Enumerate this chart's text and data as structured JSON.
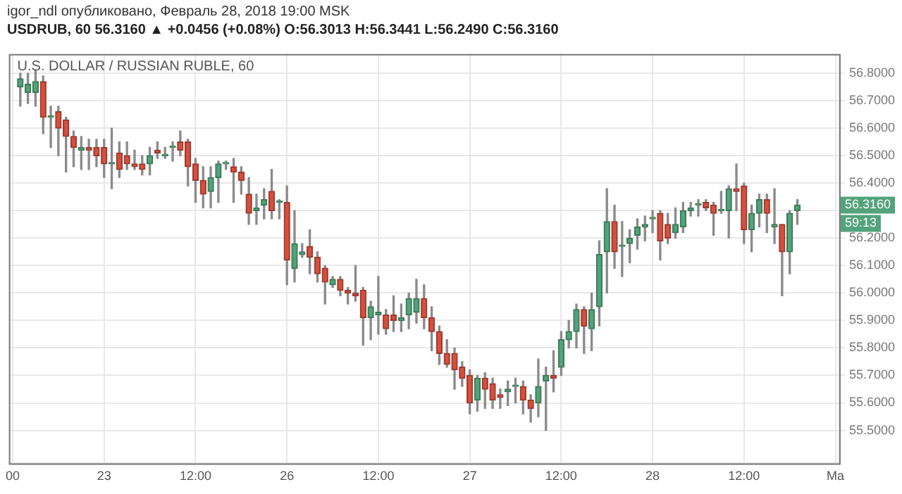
{
  "chart_data": {
    "type": "candlestick",
    "title": "U.S. DOLLAR / RUSSIAN RUBLE, 60",
    "subtitle": "USDRUB, 60 56.3160 ▲ +0.0456 (+0.08%) O:56.3013 H:56.3441 L:56.2490 C:56.3160",
    "annotations": [
      "igor_ndl опубликовано, Февраль 28, 2018 19:00 MSK",
      "56.3160",
      "59:13"
    ],
    "categories": [
      "00",
      null,
      null,
      null,
      null,
      null,
      null,
      null,
      null,
      null,
      null,
      null,
      "23",
      null,
      null,
      null,
      null,
      null,
      null,
      null,
      null,
      null,
      null,
      null,
      "12:00",
      null,
      null,
      null,
      null,
      null,
      null,
      null,
      null,
      null,
      null,
      null,
      "26",
      null,
      null,
      null,
      null,
      null,
      null,
      null,
      null,
      null,
      null,
      null,
      "12:00",
      null,
      null,
      null,
      null,
      null,
      null,
      null,
      null,
      null,
      null,
      null,
      "27",
      null,
      null,
      null,
      null,
      null,
      null,
      null,
      null,
      null,
      null,
      null,
      "12:00",
      null,
      null,
      null,
      null,
      null,
      null,
      null,
      null,
      null,
      null,
      null,
      "28",
      null,
      null,
      null,
      null,
      null,
      null,
      null,
      null,
      null,
      null,
      null,
      "12:00",
      null,
      null,
      null,
      null,
      null,
      null,
      null,
      null,
      null,
      null,
      null,
      "Ma"
    ],
    "ohlc": [
      null,
      [
        56.75,
        56.8,
        56.68,
        56.78
      ],
      [
        56.73,
        56.8,
        56.69,
        56.76
      ],
      [
        56.73,
        56.81,
        56.68,
        56.77
      ],
      [
        56.77,
        56.79,
        56.58,
        56.64
      ],
      [
        56.64,
        56.68,
        56.53,
        56.64
      ],
      [
        56.66,
        56.68,
        56.5,
        56.6
      ],
      [
        56.63,
        56.64,
        56.44,
        56.57
      ],
      [
        56.57,
        56.59,
        56.46,
        56.53
      ],
      [
        56.52,
        56.57,
        56.45,
        56.53
      ],
      [
        56.53,
        56.56,
        56.45,
        56.52
      ],
      [
        56.53,
        56.56,
        56.46,
        56.5
      ],
      [
        56.53,
        56.56,
        56.42,
        56.47
      ],
      [
        56.47,
        56.6,
        56.38,
        56.47
      ],
      [
        56.51,
        56.55,
        56.42,
        56.45
      ],
      [
        56.5,
        56.55,
        56.45,
        56.47
      ],
      [
        56.47,
        56.52,
        56.45,
        56.46
      ],
      [
        56.47,
        56.5,
        56.43,
        56.45
      ],
      [
        56.47,
        56.53,
        56.43,
        56.5
      ],
      [
        56.52,
        56.55,
        56.49,
        56.51
      ],
      [
        56.5,
        56.53,
        56.49,
        56.5
      ],
      [
        56.53,
        56.55,
        56.48,
        56.53
      ],
      [
        56.55,
        56.59,
        56.5,
        56.52
      ],
      [
        56.55,
        56.56,
        56.39,
        56.46
      ],
      [
        56.47,
        56.49,
        56.33,
        56.41
      ],
      [
        56.41,
        56.46,
        56.31,
        56.36
      ],
      [
        56.37,
        56.46,
        56.31,
        56.42
      ],
      [
        56.42,
        56.48,
        56.33,
        56.47
      ],
      [
        56.47,
        56.48,
        56.45,
        56.47
      ],
      [
        56.46,
        56.49,
        56.33,
        56.44
      ],
      [
        56.44,
        56.46,
        56.36,
        56.41
      ],
      [
        56.36,
        56.42,
        56.25,
        56.29
      ],
      [
        56.3,
        56.36,
        56.25,
        56.31
      ],
      [
        56.32,
        56.38,
        56.27,
        56.34
      ],
      [
        56.37,
        56.45,
        56.27,
        56.3
      ],
      [
        56.33,
        56.34,
        56.27,
        56.33
      ],
      [
        56.33,
        56.39,
        56.03,
        56.12
      ],
      [
        56.09,
        56.3,
        56.04,
        56.18
      ],
      [
        56.14,
        56.18,
        56.13,
        56.15
      ],
      [
        56.17,
        56.23,
        56.07,
        56.13
      ],
      [
        56.13,
        56.15,
        56.04,
        56.07
      ],
      [
        56.09,
        56.1,
        55.96,
        56.04
      ],
      [
        56.03,
        56.06,
        56.02,
        56.05
      ],
      [
        56.05,
        56.06,
        55.99,
        56.01
      ],
      [
        56.01,
        56.02,
        55.96,
        56.0
      ],
      [
        56.0,
        56.1,
        55.97,
        55.99
      ],
      [
        56.01,
        56.02,
        55.81,
        55.91
      ],
      [
        55.91,
        55.97,
        55.83,
        55.95
      ],
      [
        55.92,
        56.06,
        55.85,
        55.93
      ],
      [
        55.92,
        55.94,
        55.85,
        55.87
      ],
      [
        55.92,
        55.99,
        55.86,
        55.9
      ],
      [
        55.9,
        55.96,
        55.86,
        55.91
      ],
      [
        55.92,
        56.0,
        55.87,
        55.98
      ],
      [
        55.93,
        56.05,
        55.89,
        55.98
      ],
      [
        55.98,
        56.03,
        55.87,
        55.91
      ],
      [
        55.91,
        55.95,
        55.79,
        55.86
      ],
      [
        55.86,
        55.88,
        55.74,
        55.78
      ],
      [
        55.78,
        55.83,
        55.73,
        55.74
      ],
      [
        55.78,
        55.8,
        55.65,
        55.72
      ],
      [
        55.73,
        55.75,
        55.66,
        55.69
      ],
      [
        55.7,
        55.72,
        55.56,
        55.6
      ],
      [
        55.61,
        55.7,
        55.57,
        55.69
      ],
      [
        55.69,
        55.71,
        55.58,
        55.65
      ],
      [
        55.67,
        55.69,
        55.58,
        55.61
      ],
      [
        55.63,
        55.65,
        55.58,
        55.62
      ],
      [
        55.64,
        55.68,
        55.59,
        55.65
      ],
      [
        55.66,
        55.69,
        55.6,
        55.66
      ],
      [
        55.66,
        55.68,
        55.56,
        55.61
      ],
      [
        55.61,
        55.63,
        55.53,
        55.58
      ],
      [
        55.6,
        55.76,
        55.55,
        55.66
      ],
      [
        55.68,
        55.73,
        55.5,
        55.7
      ],
      [
        55.7,
        55.79,
        55.64,
        55.69
      ],
      [
        55.73,
        55.86,
        55.7,
        55.83
      ],
      [
        55.83,
        55.9,
        55.8,
        55.86
      ],
      [
        55.86,
        55.96,
        55.8,
        55.94
      ],
      [
        55.94,
        55.95,
        55.78,
        55.88
      ],
      [
        55.87,
        56.0,
        55.79,
        55.94
      ],
      [
        55.95,
        56.19,
        55.88,
        56.14
      ],
      [
        56.15,
        56.38,
        56.0,
        56.26
      ],
      [
        56.26,
        56.32,
        56.09,
        56.15
      ],
      [
        56.17,
        56.26,
        56.06,
        56.17
      ],
      [
        56.18,
        56.23,
        56.11,
        56.2
      ],
      [
        56.21,
        56.27,
        56.16,
        56.24
      ],
      [
        56.24,
        56.28,
        56.19,
        56.25
      ],
      [
        56.27,
        56.3,
        56.22,
        56.27
      ],
      [
        56.29,
        56.3,
        56.12,
        56.19
      ],
      [
        56.25,
        56.29,
        56.18,
        56.2
      ],
      [
        56.22,
        56.31,
        56.2,
        56.25
      ],
      [
        56.24,
        56.33,
        56.22,
        56.3
      ],
      [
        56.3,
        56.33,
        56.28,
        56.31
      ],
      [
        56.32,
        56.34,
        56.28,
        56.32
      ],
      [
        56.33,
        56.34,
        56.3,
        56.31
      ],
      [
        56.32,
        56.33,
        56.21,
        56.29
      ],
      [
        56.3,
        56.37,
        56.29,
        56.3
      ],
      [
        56.3,
        56.39,
        56.2,
        56.38
      ],
      [
        56.38,
        56.47,
        56.3,
        56.37
      ],
      [
        56.39,
        56.4,
        56.18,
        56.23
      ],
      [
        56.23,
        56.32,
        56.15,
        56.29
      ],
      [
        56.29,
        56.36,
        56.24,
        56.34
      ],
      [
        56.34,
        56.36,
        56.22,
        56.29
      ],
      [
        56.24,
        56.38,
        56.18,
        56.25
      ],
      [
        56.25,
        56.25,
        55.99,
        56.15
      ],
      [
        56.15,
        56.3,
        56.07,
        56.29
      ],
      [
        56.3,
        56.34,
        56.25,
        56.32
      ],
      null,
      null,
      null,
      null,
      null
    ],
    "ylim": [
      55.38,
      56.87
    ],
    "yticks": [
      {
        "value": 55.5,
        "label": "55.5000"
      },
      {
        "value": 55.6,
        "label": "55.6000"
      },
      {
        "value": 55.7,
        "label": "55.7000"
      },
      {
        "value": 55.8,
        "label": "55.8000"
      },
      {
        "value": 55.9,
        "label": "55.9000"
      },
      {
        "value": 56.0,
        "label": "56.0000"
      },
      {
        "value": 56.1,
        "label": "56.1000"
      },
      {
        "value": 56.2,
        "label": "56.2000"
      },
      {
        "value": 56.3,
        "label": null
      },
      {
        "value": 56.4,
        "label": "56.4000"
      },
      {
        "value": 56.5,
        "label": "56.5000"
      },
      {
        "value": 56.6,
        "label": "56.6000"
      },
      {
        "value": 56.7,
        "label": "56.7000"
      },
      {
        "value": 56.8,
        "label": "56.8000"
      }
    ],
    "grid": true,
    "legend": false
  }
}
